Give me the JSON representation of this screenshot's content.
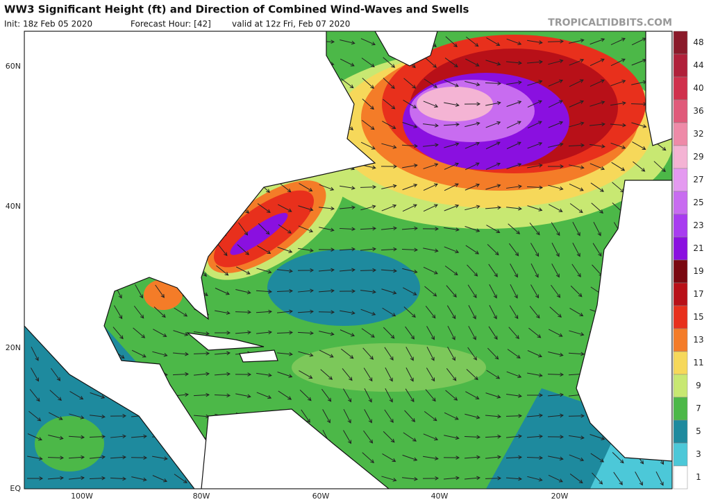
{
  "header": {
    "title": "WW3 Significant Height (ft) and Direction of Combined Wind-Waves and Swells",
    "init": "Init: 18z Feb 05 2020",
    "forecast_hour": "Forecast Hour: [42]",
    "valid": "valid at 12z Fri, Feb 07 2020",
    "source": "TROPICALTIDBITS.COM"
  },
  "map": {
    "lat_labels": [
      "60N",
      "40N",
      "20N",
      "EQ"
    ],
    "lon_labels": [
      "100W",
      "80W",
      "60W",
      "40W",
      "20W"
    ]
  },
  "legend": {
    "labels": [
      "48",
      "44",
      "40",
      "36",
      "32",
      "29",
      "27",
      "25",
      "23",
      "21",
      "19",
      "17",
      "15",
      "13",
      "11",
      "9",
      "7",
      "5",
      "3",
      "1"
    ],
    "colors": [
      "#8a1a2a",
      "#b0203a",
      "#d0304c",
      "#e05a7a",
      "#ee8aa8",
      "#f4b4d4",
      "#e49af0",
      "#c86cf0",
      "#a83cf0",
      "#8a10e0",
      "#7a0810",
      "#b81018",
      "#e8301c",
      "#f47c28",
      "#f6d85a",
      "#c8e872",
      "#4cb848",
      "#1e8a9e",
      "#4cc8d8",
      "#ffffff"
    ]
  }
}
